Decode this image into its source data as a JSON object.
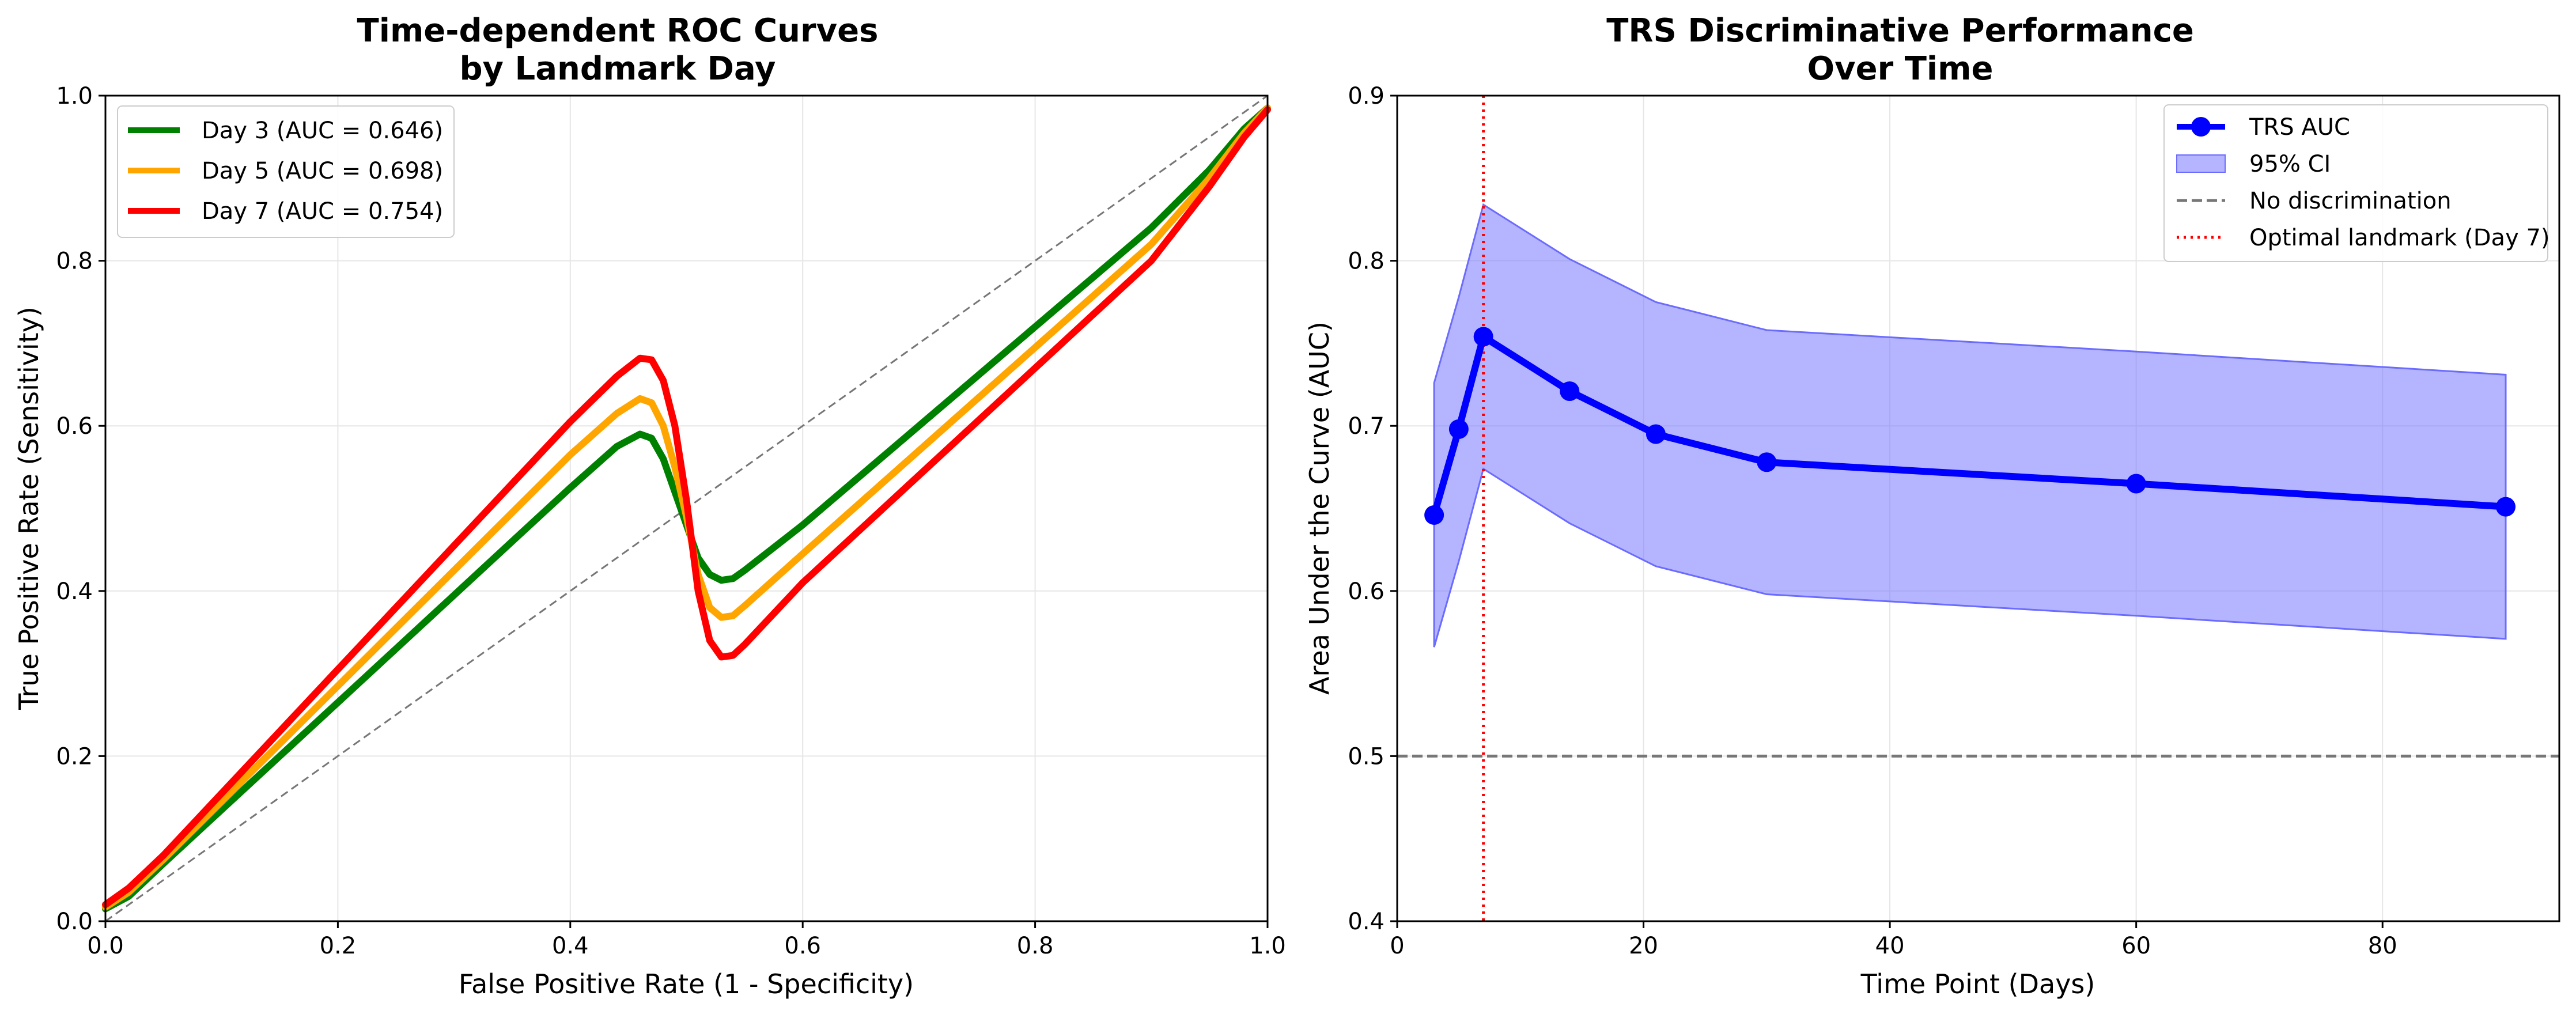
{
  "chart_data": [
    {
      "type": "line",
      "title": [
        "Time-dependent ROC Curves",
        "by Landmark Day"
      ],
      "xlabel": "False Positive Rate (1 - Specificity)",
      "ylabel": "True Positive Rate (Sensitivity)",
      "xlim": [
        0,
        1
      ],
      "ylim": [
        0,
        1
      ],
      "xticks": [
        "0.0",
        "0.2",
        "0.4",
        "0.6",
        "0.8",
        "1.0"
      ],
      "yticks": [
        "0.0",
        "0.2",
        "0.4",
        "0.6",
        "0.8",
        "1.0"
      ],
      "grid": true,
      "legend_position": "top-left",
      "reference_line": {
        "x": [
          0,
          1
        ],
        "y": [
          0,
          1
        ],
        "style": "dashed",
        "color": "#777777"
      },
      "series": [
        {
          "name": "Day 3 (AUC = 0.646)",
          "color": "#008000",
          "x": [
            0,
            0.02,
            0.05,
            0.1,
            0.15,
            0.2,
            0.25,
            0.3,
            0.35,
            0.4,
            0.44,
            0.46,
            0.47,
            0.48,
            0.49,
            0.5,
            0.51,
            0.52,
            0.53,
            0.54,
            0.55,
            0.6,
            0.7,
            0.8,
            0.9,
            0.95,
            0.98,
            1.0
          ],
          "y": [
            0.015,
            0.03,
            0.07,
            0.135,
            0.2,
            0.265,
            0.33,
            0.395,
            0.46,
            0.525,
            0.575,
            0.59,
            0.585,
            0.56,
            0.52,
            0.48,
            0.44,
            0.42,
            0.413,
            0.415,
            0.425,
            0.48,
            0.6,
            0.72,
            0.84,
            0.91,
            0.96,
            0.985
          ]
        },
        {
          "name": "Day 5 (AUC = 0.698)",
          "color": "#ffa500",
          "x": [
            0,
            0.02,
            0.05,
            0.1,
            0.15,
            0.2,
            0.25,
            0.3,
            0.35,
            0.4,
            0.44,
            0.46,
            0.47,
            0.48,
            0.49,
            0.5,
            0.51,
            0.52,
            0.53,
            0.54,
            0.55,
            0.6,
            0.7,
            0.8,
            0.9,
            0.95,
            0.98,
            1.0
          ],
          "y": [
            0.017,
            0.035,
            0.075,
            0.145,
            0.215,
            0.285,
            0.355,
            0.425,
            0.495,
            0.565,
            0.615,
            0.633,
            0.628,
            0.6,
            0.55,
            0.49,
            0.42,
            0.38,
            0.368,
            0.37,
            0.382,
            0.445,
            0.57,
            0.695,
            0.82,
            0.9,
            0.955,
            0.985
          ]
        },
        {
          "name": "Day 7 (AUC = 0.754)",
          "color": "#ff0000",
          "x": [
            0,
            0.02,
            0.05,
            0.1,
            0.15,
            0.2,
            0.25,
            0.3,
            0.35,
            0.4,
            0.44,
            0.46,
            0.47,
            0.48,
            0.49,
            0.5,
            0.51,
            0.52,
            0.53,
            0.54,
            0.55,
            0.6,
            0.7,
            0.8,
            0.9,
            0.95,
            0.98,
            1.0
          ],
          "y": [
            0.02,
            0.04,
            0.08,
            0.155,
            0.23,
            0.305,
            0.38,
            0.455,
            0.53,
            0.605,
            0.66,
            0.682,
            0.68,
            0.655,
            0.6,
            0.51,
            0.4,
            0.34,
            0.32,
            0.322,
            0.335,
            0.41,
            0.54,
            0.67,
            0.8,
            0.89,
            0.95,
            0.983
          ]
        }
      ]
    },
    {
      "type": "line",
      "title": [
        "TRS Discriminative Performance",
        "Over Time"
      ],
      "xlabel": "Time Point (Days)",
      "ylabel": "Area Under the Curve (AUC)",
      "xlim": [
        0,
        94.35
      ],
      "ylim": [
        0.4,
        0.9
      ],
      "xticks": [
        "0",
        "20",
        "40",
        "60",
        "80"
      ],
      "yticks": [
        "0.4",
        "0.5",
        "0.6",
        "0.7",
        "0.8",
        "0.9"
      ],
      "grid": true,
      "legend_position": "top-right",
      "series": [
        {
          "name": "TRS AUC",
          "color": "#0000ff",
          "x": [
            3,
            5,
            7,
            14,
            21,
            30,
            60,
            90
          ],
          "y": [
            0.646,
            0.698,
            0.754,
            0.721,
            0.695,
            0.678,
            0.665,
            0.651
          ]
        }
      ],
      "band": {
        "name": "95% CI",
        "color": "#6b6bff",
        "x": [
          3,
          5,
          7,
          14,
          21,
          30,
          60,
          90
        ],
        "lower": [
          0.566,
          0.618,
          0.674,
          0.641,
          0.615,
          0.598,
          0.585,
          0.571
        ],
        "upper": [
          0.726,
          0.778,
          0.834,
          0.801,
          0.775,
          0.758,
          0.745,
          0.731
        ]
      },
      "hlines": [
        {
          "name": "No discrimination",
          "y": 0.5,
          "style": "dashed",
          "color": "#777777"
        }
      ],
      "vlines": [
        {
          "name": "Optimal landmark (Day 7)",
          "x": 7,
          "style": "dotted",
          "color": "#ff0000"
        }
      ]
    }
  ]
}
